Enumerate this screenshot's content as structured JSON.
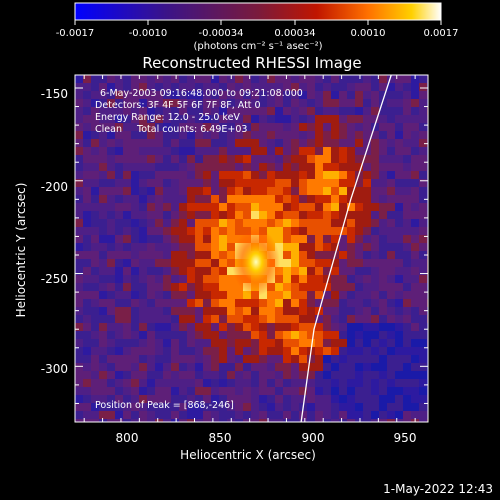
{
  "colorbar": {
    "tick_labels": [
      "-0.0017",
      "-0.0010",
      "-0.00034",
      "0.00034",
      "0.0010",
      "0.0017"
    ],
    "units": "(photons cm⁻² s⁻¹ asec⁻²)",
    "colors": [
      "#0000ff",
      "#2a00cc",
      "#3b1488",
      "#5b1a8a",
      "#8a1f3a",
      "#c01500",
      "#ff4000",
      "#ff9000",
      "#ffe000",
      "#ffffff"
    ]
  },
  "figure": {
    "title": "Reconstructed RHESSI Image",
    "xlabel": "Heliocentric X (arcsec)",
    "ylabel": "Heliocentric Y (arcsec)",
    "x_ticks": [
      "800",
      "850",
      "900",
      "950"
    ],
    "y_ticks": [
      "-150",
      "-200",
      "-250",
      "-300"
    ],
    "x_range": [
      770,
      962
    ],
    "y_range": [
      -330,
      -143
    ],
    "limb_curve": [
      [
        942,
        -143
      ],
      [
        920,
        -210
      ],
      [
        900,
        -280
      ],
      [
        893,
        -330
      ]
    ]
  },
  "annotations": {
    "time_range": "6-May-2003 09:16:48.000 to 09:21:08.000",
    "detectors": "Detectors: 3F 4F 5F 6F 7F 8F, Att 0",
    "energy": "Energy Range: 12.0 - 25.0 keV",
    "clean": "Clean     Total counts: 6.49E+03",
    "peak": "Position of Peak = [868,-246]"
  },
  "footer": {
    "timestamp": "1-May-2022 12:43"
  }
}
